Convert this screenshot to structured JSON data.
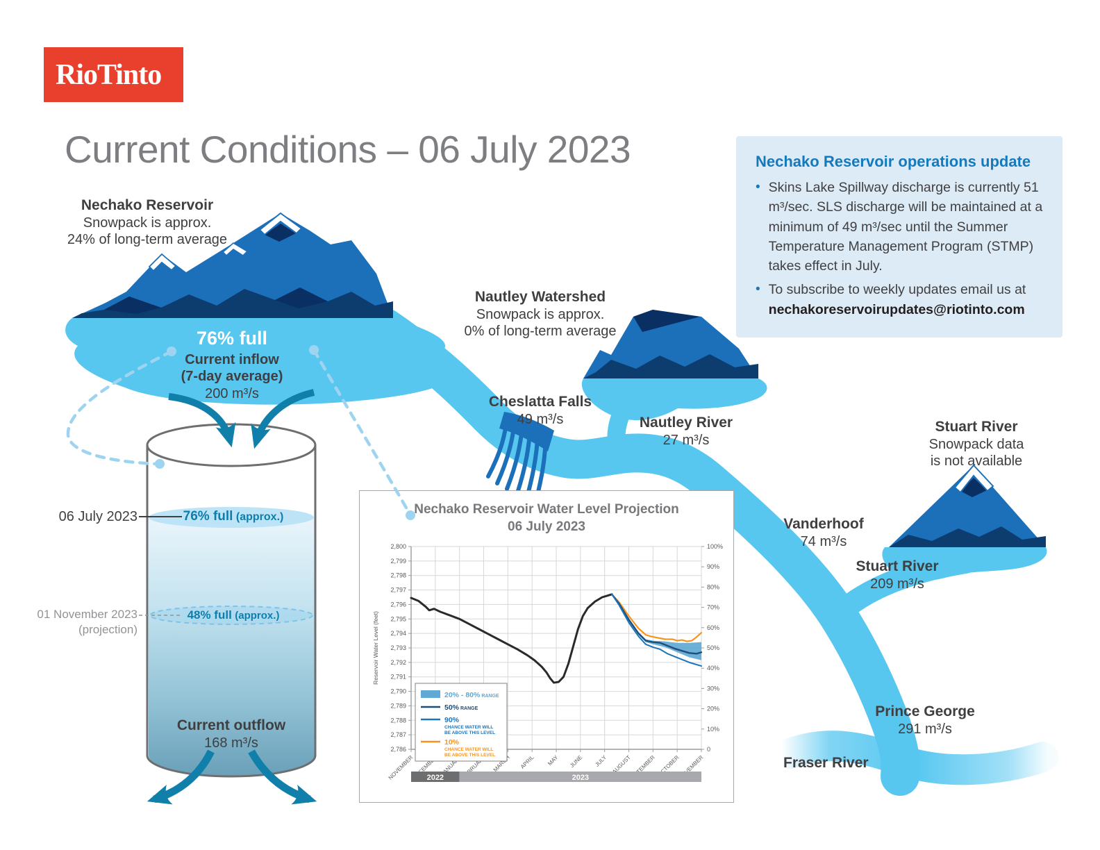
{
  "brand": {
    "logo_text": "RioTinto",
    "logo_color": "#e8402d"
  },
  "title": "Current Conditions – 06 July 2023",
  "colors": {
    "river": "#57c7f0",
    "mountain_blue": "#1b70b9",
    "mountain_navy": "#0d3c6f",
    "mountain_dark": "#092f63",
    "teal_accent": "#1080ab",
    "heading_blue": "#1579be",
    "box_background": "#dcebf5",
    "logo_red": "#e8402d"
  },
  "update_box": {
    "heading": "Nechako Reservoir operations update",
    "bullets": [
      {
        "text": "Skins Lake Spillway discharge is currently 51 m³/sec. SLS discharge will be maintained at a minimum of 49 m³/sec until the Summer Temperature Management Program (STMP) takes effect in July."
      },
      {
        "text": "To subscribe to weekly updates email us at",
        "email": "nechakoreservoirupdates@riotinto.com"
      }
    ]
  },
  "nechako": {
    "name": "Nechako Reservoir",
    "snowpack_line1": "Snowpack is approx.",
    "snowpack_line2": "24% of long-term average",
    "fullness": "76% full",
    "inflow_label": "Current inflow",
    "inflow_note": "(7-day average)",
    "inflow_value": "200 m³/s"
  },
  "nautley_watershed": {
    "name": "Nautley Watershed",
    "snowpack_line1": "Snowpack is approx.",
    "snowpack_line2": "0% of long-term average"
  },
  "stuart_watershed": {
    "name": "Stuart River",
    "line1": "Snowpack data",
    "line2": "is not available"
  },
  "flows": {
    "cheslatta": {
      "name": "Cheslatta Falls",
      "value": "49 m³/s"
    },
    "nautley_river": {
      "name": "Nautley River",
      "value": "27 m³/s"
    },
    "vanderhoof": {
      "name": "Vanderhoof",
      "value": "74 m³/s"
    },
    "stuart_river": {
      "name": "Stuart River",
      "value": "209 m³/s"
    },
    "prince_george": {
      "name": "Prince George",
      "value": "291 m³/s"
    },
    "fraser_river": {
      "name": "Fraser River"
    }
  },
  "tank": {
    "now_date": "06 July 2023",
    "now_level": "76% full",
    "now_approx": "(approx.)",
    "proj_date": "01 November 2023",
    "proj_note": "(projection)",
    "proj_level": "48% full",
    "proj_approx": "(approx.)",
    "outflow_label": "Current outflow",
    "outflow_value": "168 m³/s"
  },
  "chart_data": {
    "type": "line",
    "title": "Nechako Reservoir Water Level Projection",
    "subtitle": "06 July 2023",
    "ylabel": "Reservoir Water Level (feet)",
    "ylim": [
      2786,
      2800
    ],
    "y_tick_step": 1,
    "y2lim": [
      0,
      100
    ],
    "y2_tick_step": 10,
    "grid": true,
    "legend_position": "lower-left",
    "x_ticklabels": [
      "NOVEMBER",
      "DECEMBER",
      "JANUARY",
      "FEBRUARY",
      "MARCH",
      "APRIL",
      "MAY",
      "JUNE",
      "JULY",
      "AUGUST",
      "SEPTEMBER",
      "OCTOBER",
      "NOVEMBER"
    ],
    "year_bands": [
      {
        "label": "2022",
        "from": 0,
        "to": 2,
        "color": "#6d6e70"
      },
      {
        "label": "2023",
        "from": 2,
        "to": 12,
        "color": "#a7a9ac"
      }
    ],
    "band": {
      "name": "20% - 80% range",
      "color": "#5fa9d4",
      "upper": [
        [
          8.3,
          2796.7
        ],
        [
          8.6,
          2796.1
        ],
        [
          9,
          2795.05
        ],
        [
          9.4,
          2794.1
        ],
        [
          9.7,
          2793.6
        ],
        [
          10,
          2793.5
        ],
        [
          10.5,
          2793.45
        ],
        [
          11,
          2793.35
        ],
        [
          11.5,
          2793.35
        ],
        [
          12,
          2793.4
        ]
      ],
      "lower": [
        [
          8.3,
          2796.7
        ],
        [
          8.6,
          2796.0
        ],
        [
          9,
          2794.85
        ],
        [
          9.4,
          2793.9
        ],
        [
          9.7,
          2793.4
        ],
        [
          10,
          2793.25
        ],
        [
          10.5,
          2793.05
        ],
        [
          11,
          2792.7
        ],
        [
          11.5,
          2792.35
        ],
        [
          12,
          2792.15
        ]
      ]
    },
    "series": [
      {
        "name": "Reservoir water level (historical)",
        "color": "#2b2a29",
        "width": 3,
        "points": [
          [
            0,
            2796.45
          ],
          [
            0.3,
            2796.25
          ],
          [
            0.6,
            2795.85
          ],
          [
            0.75,
            2795.6
          ],
          [
            0.95,
            2795.7
          ],
          [
            1.2,
            2795.5
          ],
          [
            1.6,
            2795.25
          ],
          [
            2,
            2795.0
          ],
          [
            2.4,
            2794.65
          ],
          [
            2.8,
            2794.3
          ],
          [
            3.2,
            2793.95
          ],
          [
            3.6,
            2793.6
          ],
          [
            4,
            2793.25
          ],
          [
            4.4,
            2792.9
          ],
          [
            4.8,
            2792.5
          ],
          [
            5.1,
            2792.15
          ],
          [
            5.4,
            2791.7
          ],
          [
            5.6,
            2791.3
          ],
          [
            5.75,
            2790.9
          ],
          [
            5.9,
            2790.6
          ],
          [
            6.1,
            2790.65
          ],
          [
            6.3,
            2791.0
          ],
          [
            6.5,
            2791.9
          ],
          [
            6.7,
            2793.1
          ],
          [
            6.9,
            2794.3
          ],
          [
            7.1,
            2795.2
          ],
          [
            7.3,
            2795.75
          ],
          [
            7.6,
            2796.2
          ],
          [
            7.9,
            2796.5
          ],
          [
            8.1,
            2796.6
          ],
          [
            8.3,
            2796.7
          ]
        ]
      },
      {
        "name": "10% chance water will be above this level",
        "color": "#f7941d",
        "width": 2.2,
        "points": [
          [
            8.3,
            2796.7
          ],
          [
            8.6,
            2796.15
          ],
          [
            9,
            2795.2
          ],
          [
            9.4,
            2794.35
          ],
          [
            9.7,
            2793.9
          ],
          [
            9.9,
            2793.8
          ],
          [
            10.2,
            2793.7
          ],
          [
            10.5,
            2793.6
          ],
          [
            10.8,
            2793.6
          ],
          [
            11,
            2793.5
          ],
          [
            11.2,
            2793.55
          ],
          [
            11.4,
            2793.45
          ],
          [
            11.6,
            2793.5
          ],
          [
            11.8,
            2793.75
          ],
          [
            12,
            2794.05
          ]
        ]
      },
      {
        "name": "50% range",
        "color": "#1f4e79",
        "width": 2.4,
        "points": [
          [
            8.3,
            2796.7
          ],
          [
            8.6,
            2796.05
          ],
          [
            9,
            2794.95
          ],
          [
            9.4,
            2794.0
          ],
          [
            9.7,
            2793.5
          ],
          [
            10,
            2793.4
          ],
          [
            10.3,
            2793.35
          ],
          [
            10.6,
            2793.15
          ],
          [
            10.9,
            2792.95
          ],
          [
            11.2,
            2792.8
          ],
          [
            11.5,
            2792.65
          ],
          [
            11.8,
            2792.6
          ],
          [
            12,
            2792.7
          ]
        ]
      },
      {
        "name": "90% chance water will be above this level",
        "color": "#1b75bc",
        "width": 2,
        "points": [
          [
            8.3,
            2796.7
          ],
          [
            8.6,
            2795.95
          ],
          [
            9,
            2794.75
          ],
          [
            9.4,
            2793.8
          ],
          [
            9.7,
            2793.25
          ],
          [
            10,
            2793.05
          ],
          [
            10.3,
            2792.9
          ],
          [
            10.6,
            2792.6
          ],
          [
            10.9,
            2792.4
          ],
          [
            11.2,
            2792.2
          ],
          [
            11.5,
            2792.0
          ],
          [
            11.8,
            2791.85
          ],
          [
            12,
            2791.75
          ]
        ]
      }
    ],
    "legend": [
      {
        "swatch": "box",
        "color": "#5fa9d4",
        "main": "20% - 80%",
        "small": "RANGE"
      },
      {
        "swatch": "line",
        "color": "#1f4e79",
        "main": "50%",
        "small": "RANGE"
      },
      {
        "swatch": "line",
        "color": "#1b75bc",
        "main": "90%",
        "lines": [
          "CHANCE WATER WILL",
          "BE ABOVE THIS LEVEL"
        ]
      },
      {
        "swatch": "line",
        "color": "#f7941d",
        "main": "10%",
        "lines": [
          "CHANCE WATER WILL",
          "BE ABOVE THIS LEVEL"
        ]
      }
    ]
  }
}
